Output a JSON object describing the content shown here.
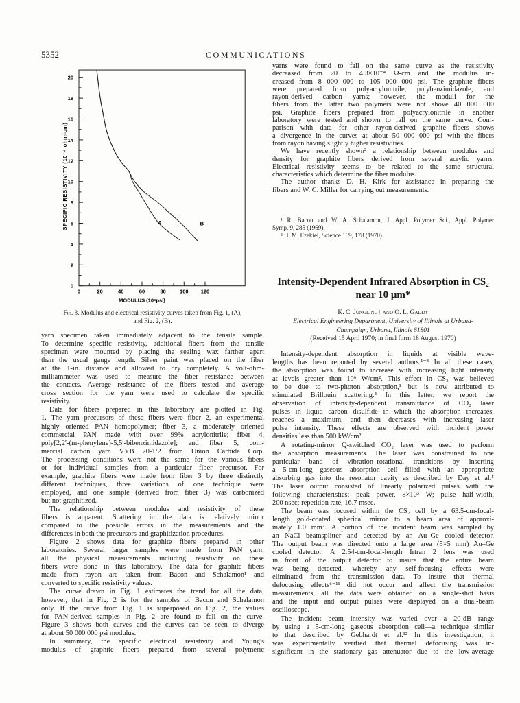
{
  "header": {
    "page_number": "5352",
    "running_head": "COMMUNICATIONS"
  },
  "chart_data": {
    "type": "line",
    "title": "",
    "xlabel": "MODULUS (10⁶psi)",
    "ylabel": "SPECIFIC RESISTIVITY (10⁻⁴ ohm-cm)",
    "xlim": [
      0,
      158
    ],
    "ylim": [
      0,
      20.7
    ],
    "x_ticks": [
      0,
      20,
      40,
      60,
      80,
      100,
      120
    ],
    "y_ticks": [
      0,
      2,
      4,
      6,
      8,
      10,
      12,
      14,
      16,
      18,
      20
    ],
    "grid": false,
    "series": [
      {
        "name": "A",
        "points": [
          [
            17,
            20.7
          ],
          [
            20,
            18.2
          ],
          [
            23,
            16.5
          ],
          [
            26,
            15
          ],
          [
            30,
            13.8
          ],
          [
            35,
            12.7
          ],
          [
            40,
            11.9
          ],
          [
            45,
            11.3
          ],
          [
            48,
            10.9
          ],
          [
            51,
            10
          ],
          [
            57,
            9
          ],
          [
            63,
            8
          ],
          [
            69,
            7
          ],
          [
            76,
            6
          ],
          [
            85,
            5.2
          ],
          [
            96,
            4.4
          ]
        ]
      },
      {
        "name": "B",
        "points": [
          [
            17,
            20.7
          ],
          [
            20,
            18.2
          ],
          [
            23,
            16.5
          ],
          [
            26,
            15
          ],
          [
            30,
            13.8
          ],
          [
            35,
            12.7
          ],
          [
            40,
            11.9
          ],
          [
            45,
            11.3
          ],
          [
            48,
            10.9
          ],
          [
            53,
            10
          ],
          [
            62,
            9
          ],
          [
            75,
            8
          ],
          [
            86,
            7
          ],
          [
            97,
            6
          ],
          [
            113,
            4.3
          ]
        ]
      }
    ]
  },
  "figure_caption": {
    "label": "Fig. 3.",
    "text": "Modulus and electrical resistivity curves taken from Fig. 1, (A),",
    "text2": "and Fig. 2, (B)."
  },
  "left_column": [
    {
      "indent": false,
      "lines": [
        "yarn specimen taken immediately adjacent to the tensile sample.",
        "To determine specific resistivity, additional fibers from the tensile",
        "specimen were mounted by placing the sealing wax farther apart",
        "than the usual gauge length. Silver paint was placed on the fiber",
        "at the 1-in. distance and allowed to dry completely. A volt-ohm-",
        "milliammeter was used to measure the fiber resistance between",
        "the contacts. Average resistance of the fibers tested and average",
        "cross section for the yarn were used to calculate the specific",
        "resistivity."
      ]
    },
    {
      "indent": true,
      "lines": [
        "Data for fibers prepared in this laboratory are plotted in Fig.",
        "1. The yarn precursors of these fibers were fiber 2, an experimental",
        "highly oriented PAN homopolymer; fiber 3, a moderately oriented",
        "commercial PAN made with over 99% acrylonitrile; fiber 4,",
        "poly[2,2′-(m-phenylene)-5,5′-bibenzimidazole]; and fiber 5, com-",
        "mercial carbon yarn VYB 70-1/2 from Union Carbide Corp.",
        "The processing conditions were not the same for the various fibers",
        "or for individual samples from a particular fiber precursor. For",
        "example, graphite fibers were made from fiber 3 by three distinctly",
        "different techniques, three variations of one technique were",
        "employed, and one sample (derived from fiber 3) was carbonized",
        "but not graphitized."
      ]
    },
    {
      "indent": true,
      "lines": [
        "The relationship between modulus and resistivity of these",
        "fibers is apparent. Scattering in the data is relatively minor",
        "compared to the possible errors in the measurements and the",
        "differences in both the precursors and graphitization procedures."
      ]
    },
    {
      "indent": true,
      "lines": [
        "Figure 2 shows data for graphite fibers prepared in other",
        "laboratories. Several larger samples were made from PAN yarn;",
        "all the physical measurements including resistivity on these",
        "fibers were done in this laboratory. The data for graphite fibers",
        "made from rayon are taken from Bacon and Schalamon¹ and",
        "converted to specific resistivity values."
      ]
    },
    {
      "indent": true,
      "lines": [
        "The curve drawn in Fig. 1 estimates the trend for all the data;",
        "however, that in Fig. 2 is for the samples of Bacon and Schalamon",
        "only. If the curve from Fig. 1 is superposed on Fig. 2, the values",
        "for PAN-derived samples in Fig. 2 are found to fall on the curve.",
        "Figure 3 shows both curves and the curves can be seen to diverge",
        "at about 50 000 000 psi modulus."
      ]
    },
    {
      "indent": true,
      "continues": true,
      "lines": [
        "In summary, the specific electrical resistivity and Young's",
        "modulus of graphite fibers prepared from several polymeric"
      ]
    }
  ],
  "right_column_top": [
    {
      "indent": false,
      "lines": [
        "yarns were found to fall on the same curve as the resistivity",
        "decreased from 20 to 4.3×10⁻⁴ Ω-cm and the modulus in-",
        "creased from 8 000 000 to 105 000 000 psi. The graphite fibers",
        "were prepared from polyacrylonitrile, polybenzimidazole, and",
        "rayon-derived carbon yarns; however, the moduli for the",
        "fibers from the latter two polymers were not above 40 000 000",
        "psi. Graphite fibers prepared from polyacrylonitrile in another",
        "laboratory were tested and shown to fall on the same curve. Com-",
        "parison with data for other rayon-derived graphite fibers shows",
        "a divergence in the curves at about 50 000 000 psi with the fibers",
        "from rayon having slightly higher resistivities."
      ]
    },
    {
      "indent": true,
      "lines": [
        "We have recently shown² a relationship between modulus and",
        "density for graphite fibers derived from several acrylic yarns.",
        "Electrical resistivity seems to be related to the same structural",
        "characteristics which determine the fiber modulus."
      ]
    },
    {
      "indent": true,
      "lines": [
        "The author thanks D. H. Kirk for assistance in preparing the",
        "fibers and W. C. Miller for carrying out measurements."
      ]
    }
  ],
  "footnotes": [
    {
      "indent": true,
      "lines": [
        "¹ R. Bacon and W. A. Schalamon, J. Appl. Polymer Sci., Appl. Polymer",
        "Symp. 9, 285 (1969)."
      ]
    },
    {
      "indent": true,
      "lines": [
        "² H. M. Ezekiel, Science 169, 178 (1970)."
      ]
    }
  ],
  "article": {
    "title_line1": "Intensity-Dependent Infrared Absorption in CS₂",
    "title_line2": "near 10 μm*",
    "authors": "K. C. Jungling† and O. L. Gaddy",
    "affiliation1": "Electrical Engineering Department, University of Illinois at Urbana-",
    "affiliation2": "Champaign, Urbana, Illinois 61801",
    "received": "(Received 15 April 1970; in final form 18 August 1970)"
  },
  "right_column_body": [
    {
      "indent": true,
      "lines": [
        "Intensity-dependent absorption in liquids at visible wave-",
        "lengths has been reported by several authors.¹⁻³ In all these cases,",
        "the absorption was found to increase with increasing light intensity",
        "at levels greater than 10⁶ W/cm². This effect in CS₂ was believed",
        "to be due to two-photon absorption,¹ but is now attributed to",
        "stimulated Brillouin scattering.⁴ In this letter, we report the",
        "observation of intensity-dependent transmittance of CO₂ laser",
        "pulses in liquid carbon disulfide in which the absorption increases,",
        "reaches a maximum, and then decreases with increasing laser",
        "pulse intensity. These effects are observed with incident power",
        "densities less than 500 kW/cm²."
      ]
    },
    {
      "indent": true,
      "lines": [
        "A rotating-mirror Q-switched CO₂ laser was used to perform",
        "the absorption measurements. The laser was constrained to one",
        "particular band of vibration–rotational transitions by inserting",
        "a 5-cm-long gaseous absorption cell filled with an appropriate",
        "absorbing gas into the resonator cavity as described by Day et al.⁵",
        "The laser output consisted of linearly polarized pulses with the",
        "following characteristics: peak power, 8×10³ W; pulse half-width,",
        "200 nsec; repetition rate, 16.7 msec."
      ]
    },
    {
      "indent": true,
      "lines": [
        "The beam was focused within the CS₂ cell by a 63.5-cm-focal-",
        "length gold-coated spherical mirror to a beam area of approxi-",
        "mately 1.0 mm². A portion of the incident beam was sampled by",
        "an NaCl beamsplitter and detected by an Au–Ge cooled detector.",
        "The output beam was directed onto a large area (5×5 mm) Au–Ge",
        "cooled detector. A 2.54-cm-focal-length Irtran 2 lens was used",
        "in front of the output detector to insure that the entire beam",
        "was being detected, whereby any self-focusing effects were",
        "eliminated from the transmission data. To insure that thermal",
        "defocusing effects⁶⁻¹¹ did not occur and affect the transmission",
        "measurements, all the data were obtained on a single-shot basis",
        "and the input and output pulses were displayed on a dual-beam",
        "oscilloscope."
      ]
    },
    {
      "indent": true,
      "continues": true,
      "lines": [
        "The incident beam intensity was varied over a 20-dB range",
        "by using a 5-cm-long gaseous absorption cell—a technique similar",
        "to that described by Gebhardt et al.¹² In this investigation, it",
        "was experimentally verified that thermal defocusing was in-",
        "significant in the stationary gas attenuator due to the low-average"
      ]
    }
  ]
}
